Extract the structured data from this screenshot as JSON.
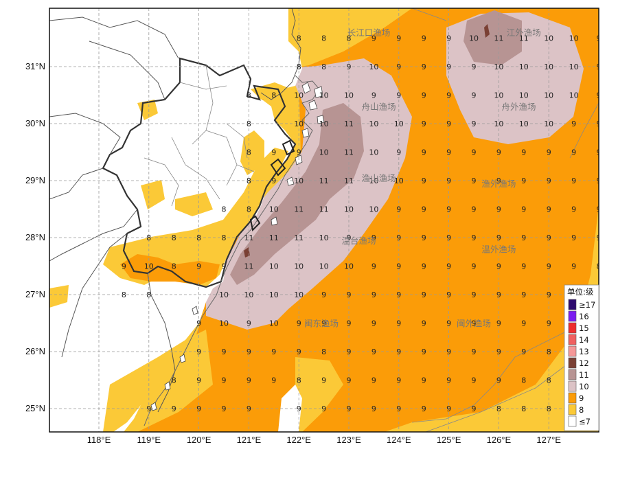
{
  "latitude_labels": [
    "31°N",
    "30°N",
    "29°N",
    "28°N",
    "27°N",
    "26°N",
    "25°N"
  ],
  "longitude_labels": [
    "118°E",
    "119°E",
    "120°E",
    "121°E",
    "122°E",
    "123°E",
    "124°E",
    "125°E",
    "126°E",
    "127°E"
  ],
  "legend": {
    "title": "单位:级",
    "items": [
      {
        "label": "≥17",
        "color": "#2d0a6e"
      },
      {
        "label": "16",
        "color": "#7a1df0"
      },
      {
        "label": "15",
        "color": "#ee2d2d"
      },
      {
        "label": "14",
        "color": "#f06060"
      },
      {
        "label": "13",
        "color": "#f59898"
      },
      {
        "label": "12",
        "color": "#7a4034"
      },
      {
        "label": "11",
        "color": "#b79493"
      },
      {
        "label": "10",
        "color": "#dcc3c6"
      },
      {
        "label": "9",
        "color": "#fb9c08"
      },
      {
        "label": "8",
        "color": "#fbc937"
      },
      {
        "label": "≤7",
        "color": "#ffffff"
      }
    ]
  },
  "fishing_grounds": [
    {
      "name": "长江口渔场",
      "lon": 123.4,
      "lat": 31.6
    },
    {
      "name": "江外渔场",
      "lon": 126.5,
      "lat": 31.6
    },
    {
      "name": "舟山渔场",
      "lon": 123.6,
      "lat": 30.3
    },
    {
      "name": "舟外渔场",
      "lon": 126.4,
      "lat": 30.3
    },
    {
      "name": "渔山渔场",
      "lon": 123.6,
      "lat": 29.05
    },
    {
      "name": "渔外渔场",
      "lon": 126.0,
      "lat": 28.95
    },
    {
      "name": "温台渔场",
      "lon": 123.2,
      "lat": 27.95
    },
    {
      "name": "温外渔场",
      "lon": 126.0,
      "lat": 27.8
    },
    {
      "name": "闽东渔场",
      "lon": 122.45,
      "lat": 26.5
    },
    {
      "name": "闽外渔场",
      "lon": 125.5,
      "lat": 26.5
    }
  ],
  "wind_grid": {
    "lon_start": 122.0,
    "lat_start": 31.5,
    "step": 0.5,
    "rows": [
      [
        "8",
        "8",
        "8",
        "9",
        "9",
        "9",
        "9",
        "10",
        "11",
        "11",
        "10",
        "10",
        "9"
      ],
      [
        "8",
        "8",
        "9",
        "10",
        "9",
        "9",
        "9",
        "9",
        "10",
        "10",
        "10",
        "10",
        "9"
      ],
      [
        "10",
        "10",
        "10",
        "9",
        "9",
        "9",
        "9",
        "9",
        "10",
        "10",
        "10",
        "10",
        "9"
      ],
      [
        "10",
        "10",
        "11",
        "10",
        "10",
        "9",
        "9",
        "9",
        "10",
        "10",
        "10",
        "9",
        "9"
      ],
      [
        "9",
        "10",
        "11",
        "10",
        "9",
        "9",
        "9",
        "9",
        "9",
        "9",
        "9",
        "9",
        "9"
      ],
      [
        "10",
        "11",
        "11",
        "10",
        "10",
        "9",
        "9",
        "9",
        "9",
        "9",
        "9",
        "9",
        "9"
      ],
      [
        "11",
        "11",
        "10",
        "10",
        "9",
        "9",
        "9",
        "9",
        "9",
        "9",
        "9",
        "9",
        "9"
      ],
      [
        "11",
        "10",
        "9",
        "9",
        "9",
        "9",
        "9",
        "9",
        "9",
        "9",
        "9",
        "9",
        "9"
      ],
      [
        "10",
        "10",
        "10",
        "9",
        "9",
        "9",
        "9",
        "9",
        "9",
        "9",
        "9",
        "9",
        "8"
      ],
      [
        "10",
        "9",
        "9",
        "9",
        "9",
        "9",
        "9",
        "9",
        "9",
        "9",
        "9",
        "9",
        "9"
      ],
      [
        "9",
        "9",
        "9",
        "9",
        "9",
        "9",
        "9",
        "9",
        "9",
        "9",
        "9",
        "9",
        "8"
      ],
      [
        "9",
        "8",
        "9",
        "9",
        "9",
        "9",
        "9",
        "9",
        "9",
        "9",
        "8",
        "8",
        "8"
      ],
      [
        "8",
        "9",
        "9",
        "9",
        "9",
        "9",
        "9",
        "9",
        "9",
        "8",
        "8",
        "8",
        "8"
      ],
      [
        "9",
        "9",
        "9",
        "9",
        "9",
        "9",
        "9",
        "9",
        "8",
        "8",
        "8",
        "8",
        "8"
      ]
    ],
    "coastal_values": [
      {
        "lon": 121.0,
        "lat": 30.5,
        "v": "8"
      },
      {
        "lon": 121.5,
        "lat": 30.5,
        "v": "8"
      },
      {
        "lon": 121.0,
        "lat": 30.0,
        "v": "8"
      },
      {
        "lon": 121.0,
        "lat": 29.5,
        "v": "8"
      },
      {
        "lon": 121.5,
        "lat": 29.5,
        "v": "9"
      },
      {
        "lon": 121.0,
        "lat": 29.0,
        "v": "8"
      },
      {
        "lon": 121.5,
        "lat": 29.0,
        "v": "9"
      },
      {
        "lon": 120.5,
        "lat": 28.5,
        "v": "8"
      },
      {
        "lon": 121.0,
        "lat": 28.5,
        "v": "8"
      },
      {
        "lon": 121.5,
        "lat": 28.5,
        "v": "10"
      },
      {
        "lon": 119.0,
        "lat": 28.0,
        "v": "8"
      },
      {
        "lon": 119.5,
        "lat": 28.0,
        "v": "8"
      },
      {
        "lon": 120.0,
        "lat": 28.0,
        "v": "8"
      },
      {
        "lon": 120.5,
        "lat": 28.0,
        "v": "8"
      },
      {
        "lon": 121.0,
        "lat": 28.0,
        "v": "11"
      },
      {
        "lon": 121.5,
        "lat": 28.0,
        "v": "11"
      },
      {
        "lon": 118.5,
        "lat": 27.5,
        "v": "9"
      },
      {
        "lon": 119.0,
        "lat": 27.5,
        "v": "10"
      },
      {
        "lon": 119.5,
        "lat": 27.5,
        "v": "8"
      },
      {
        "lon": 120.0,
        "lat": 27.5,
        "v": "9"
      },
      {
        "lon": 120.5,
        "lat": 27.5,
        "v": "9"
      },
      {
        "lon": 121.0,
        "lat": 27.5,
        "v": "11"
      },
      {
        "lon": 121.5,
        "lat": 27.5,
        "v": "10"
      },
      {
        "lon": 118.5,
        "lat": 27.0,
        "v": "8"
      },
      {
        "lon": 119.0,
        "lat": 27.0,
        "v": "8"
      },
      {
        "lon": 120.5,
        "lat": 27.0,
        "v": "10"
      },
      {
        "lon": 121.0,
        "lat": 27.0,
        "v": "10"
      },
      {
        "lon": 121.5,
        "lat": 27.0,
        "v": "10"
      },
      {
        "lon": 120.0,
        "lat": 26.5,
        "v": "9"
      },
      {
        "lon": 120.5,
        "lat": 26.5,
        "v": "10"
      },
      {
        "lon": 121.0,
        "lat": 26.5,
        "v": "9"
      },
      {
        "lon": 121.5,
        "lat": 26.5,
        "v": "10"
      },
      {
        "lon": 120.0,
        "lat": 26.0,
        "v": "9"
      },
      {
        "lon": 120.5,
        "lat": 26.0,
        "v": "9"
      },
      {
        "lon": 121.0,
        "lat": 26.0,
        "v": "9"
      },
      {
        "lon": 121.5,
        "lat": 26.0,
        "v": "9"
      },
      {
        "lon": 119.5,
        "lat": 25.5,
        "v": "8"
      },
      {
        "lon": 120.0,
        "lat": 25.5,
        "v": "9"
      },
      {
        "lon": 120.5,
        "lat": 25.5,
        "v": "9"
      },
      {
        "lon": 121.0,
        "lat": 25.5,
        "v": "9"
      },
      {
        "lon": 121.5,
        "lat": 25.5,
        "v": "9"
      },
      {
        "lon": 119.0,
        "lat": 25.0,
        "v": "9"
      },
      {
        "lon": 119.5,
        "lat": 25.0,
        "v": "9"
      },
      {
        "lon": 120.0,
        "lat": 25.0,
        "v": "9"
      },
      {
        "lon": 120.5,
        "lat": 25.0,
        "v": "9"
      },
      {
        "lon": 121.0,
        "lat": 25.0,
        "v": "9"
      }
    ]
  }
}
